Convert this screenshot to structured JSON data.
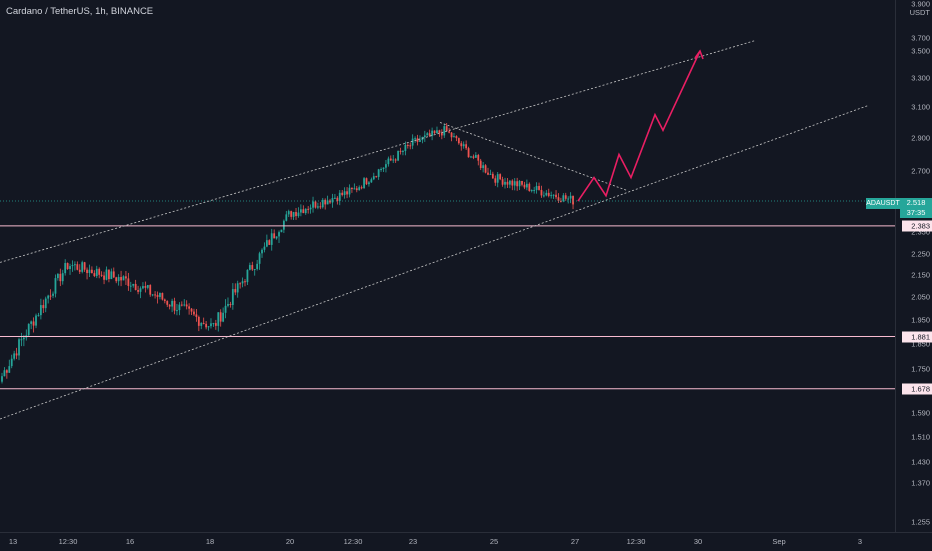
{
  "header": {
    "title": "Cardano / TetherUS, 1h, BINANCE"
  },
  "price_axis": {
    "currency": "USDT",
    "ticks": [
      "3.900",
      "3.700",
      "3.500",
      "3.300",
      "3.100",
      "2.900",
      "2.700",
      "2.500",
      "2.350",
      "2.250",
      "2.150",
      "2.050",
      "1.950",
      "1.850",
      "1.750",
      "1.590",
      "1.510",
      "1.430",
      "1.370",
      "1.255"
    ]
  },
  "time_axis": {
    "ticks": [
      "13",
      "12:30",
      "16",
      "18",
      "20",
      "12:30",
      "23",
      "25",
      "27",
      "12:30",
      "30",
      "Sep",
      "3"
    ]
  },
  "symbol_badge": "ADAUSDT",
  "current_price": {
    "value": "2.518",
    "countdown": "37:35"
  },
  "levels": [
    {
      "label": "2.383"
    },
    {
      "label": "1.881"
    },
    {
      "label": "1.678"
    }
  ],
  "colors": {
    "background": "#131722",
    "up_candle": "#26a69a",
    "down_candle": "#ef5350",
    "projection": "#e91e63",
    "level_line": "#f8bbd0",
    "channel_line": "#c8c8c8"
  },
  "chart_data": {
    "type": "candlestick",
    "instrument": "ADAUSDT",
    "interval": "1h",
    "exchange": "BINANCE",
    "current_price": 2.518,
    "horizontal_levels": [
      2.383,
      1.881,
      1.678
    ],
    "price_path": [
      {
        "x": "13",
        "price": 1.71
      },
      {
        "x": "12:30",
        "price": 2.2
      },
      {
        "x": "16",
        "price": 2.12
      },
      {
        "x": "18",
        "price": 1.92
      },
      {
        "x": "20",
        "price": 2.45
      },
      {
        "x": "12:30",
        "price": 2.58
      },
      {
        "x": "23",
        "price": 2.87
      },
      {
        "x": "24",
        "price": 2.95
      },
      {
        "x": "25",
        "price": 2.66
      },
      {
        "x": "27",
        "price": 2.518
      }
    ],
    "projection_path": [
      2.518,
      2.66,
      2.55,
      2.8,
      2.66,
      3.05,
      2.95,
      3.5
    ]
  }
}
